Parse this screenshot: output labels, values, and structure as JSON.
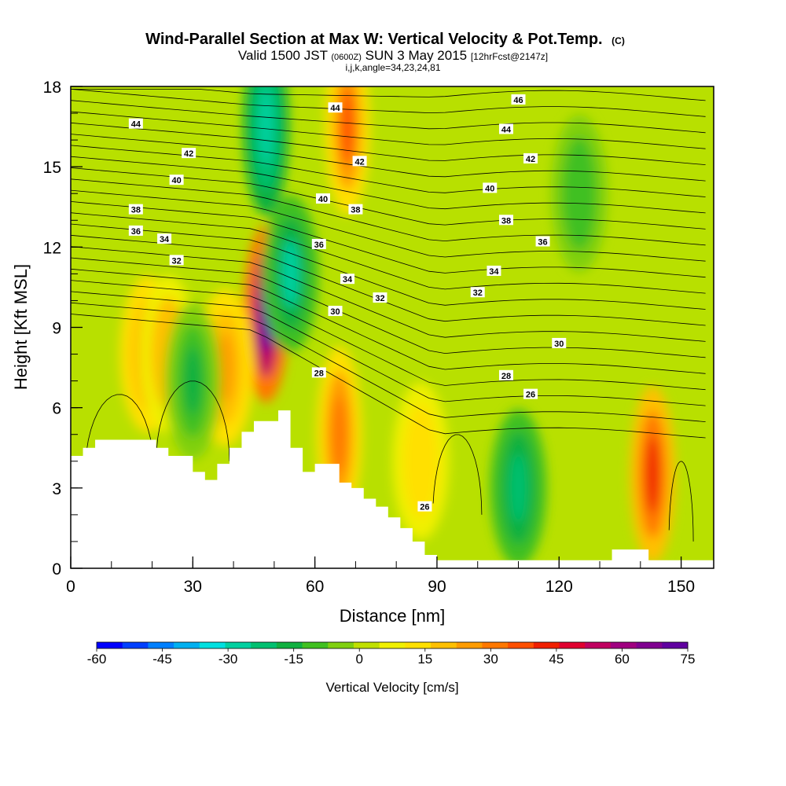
{
  "title": {
    "main": "Wind-Parallel Section at Max W: Vertical Velocity & Pot.Temp.",
    "copyright": "(C)",
    "valid_prefix": "Valid 1500 JST",
    "valid_utc": "(0600Z)",
    "valid_date": "SUN 3 May 2015",
    "forecast": "[12hrFcst@2147z]",
    "indices": "i,j,k,angle=34,23,24,81"
  },
  "chart_data": {
    "type": "heatmap",
    "xlabel": "Distance [nm]",
    "ylabel": "Height [Kft MSL]",
    "xlim": [
      0,
      158
    ],
    "ylim": [
      0,
      18
    ],
    "x_ticks": [
      0,
      30,
      60,
      90,
      120,
      150
    ],
    "y_ticks": [
      0,
      3,
      6,
      9,
      12,
      15,
      18
    ],
    "colorbar": {
      "label": "Vertical Velocity [cm/s]",
      "ticks": [
        -60,
        -45,
        -30,
        -15,
        0,
        15,
        30,
        45,
        60,
        75
      ],
      "colors": [
        "#0000ff",
        "#0040ff",
        "#0080ff",
        "#00b0f0",
        "#00e0e0",
        "#00d0a0",
        "#00c070",
        "#10b040",
        "#40c020",
        "#80d010",
        "#c0e000",
        "#f0f000",
        "#ffe000",
        "#ffc000",
        "#ff9c00",
        "#ff7800",
        "#ff5000",
        "#f02000",
        "#e00030",
        "#c00060",
        "#a00080",
        "#800090",
        "#6000a0"
      ]
    },
    "vertical_velocity_features_cm_s": [
      {
        "x": 48,
        "y": 9.5,
        "w": 75
      },
      {
        "x": 68,
        "y": 16.5,
        "w": 35
      },
      {
        "x": 48,
        "y": 16.5,
        "w": -30
      },
      {
        "x": 54,
        "y": 11,
        "w": -25
      },
      {
        "x": 19,
        "y": 8,
        "w": 25
      },
      {
        "x": 24,
        "y": 8,
        "w": 22
      },
      {
        "x": 38,
        "y": 7.5,
        "w": 25
      },
      {
        "x": 66,
        "y": 5,
        "w": 30
      },
      {
        "x": 86,
        "y": 4,
        "w": 15
      },
      {
        "x": 143,
        "y": 3.5,
        "w": 45
      },
      {
        "x": 30,
        "y": 7,
        "w": -15
      },
      {
        "x": 110,
        "y": 3,
        "w": -20
      },
      {
        "x": 125,
        "y": 14,
        "w": -10
      }
    ],
    "terrain_kft": {
      "x": [
        0,
        3,
        6,
        9,
        21,
        24,
        27,
        30,
        33,
        36,
        39,
        42,
        45,
        51,
        54,
        57,
        60,
        63,
        66,
        69,
        72,
        75,
        78,
        81,
        84,
        87,
        90,
        130,
        133,
        139,
        142,
        158
      ],
      "y": [
        4.2,
        4.5,
        4.8,
        4.8,
        4.5,
        4.2,
        4.2,
        3.6,
        3.3,
        3.9,
        4.5,
        5.1,
        5.5,
        5.9,
        4.5,
        3.6,
        3.9,
        3.9,
        3.2,
        3.0,
        2.6,
        2.3,
        1.9,
        1.5,
        1.0,
        0.5,
        0.3,
        0.3,
        0.7,
        0.7,
        0.3,
        0.3
      ]
    },
    "potential_temperature_labels": [
      {
        "text": "46",
        "x": 110,
        "y": 17.5
      },
      {
        "text": "44",
        "x": 16,
        "y": 16.6
      },
      {
        "text": "44",
        "x": 65,
        "y": 17.2
      },
      {
        "text": "44",
        "x": 107,
        "y": 16.4
      },
      {
        "text": "42",
        "x": 29,
        "y": 15.5
      },
      {
        "text": "42",
        "x": 71,
        "y": 15.2
      },
      {
        "text": "42",
        "x": 113,
        "y": 15.3
      },
      {
        "text": "40",
        "x": 26,
        "y": 14.5
      },
      {
        "text": "40",
        "x": 62,
        "y": 13.8
      },
      {
        "text": "40",
        "x": 103,
        "y": 14.2
      },
      {
        "text": "38",
        "x": 16,
        "y": 13.4
      },
      {
        "text": "38",
        "x": 70,
        "y": 13.4
      },
      {
        "text": "38",
        "x": 107,
        "y": 13.0
      },
      {
        "text": "36",
        "x": 16,
        "y": 12.6
      },
      {
        "text": "36",
        "x": 61,
        "y": 12.1
      },
      {
        "text": "36",
        "x": 116,
        "y": 12.2
      },
      {
        "text": "34",
        "x": 23,
        "y": 12.3
      },
      {
        "text": "34",
        "x": 68,
        "y": 10.8
      },
      {
        "text": "34",
        "x": 104,
        "y": 11.1
      },
      {
        "text": "32",
        "x": 26,
        "y": 11.5
      },
      {
        "text": "32",
        "x": 76,
        "y": 10.1
      },
      {
        "text": "32",
        "x": 100,
        "y": 10.3
      },
      {
        "text": "30",
        "x": 65,
        "y": 9.6
      },
      {
        "text": "30",
        "x": 120,
        "y": 8.4
      },
      {
        "text": "28",
        "x": 61,
        "y": 7.3
      },
      {
        "text": "28",
        "x": 107,
        "y": 7.2
      },
      {
        "text": "26",
        "x": 113,
        "y": 6.5
      },
      {
        "text": "26",
        "x": 87,
        "y": 2.3
      }
    ]
  }
}
